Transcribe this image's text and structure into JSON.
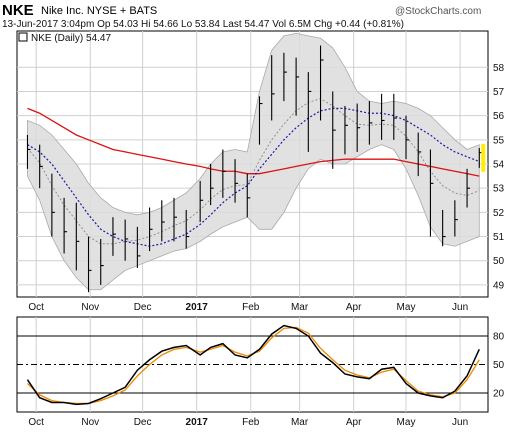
{
  "header": {
    "symbol": "NKE",
    "company": "Nike Inc.  NYSE + BATS",
    "watermark": "@StockCharts.com",
    "legend": "NKE (Daily) 54.47",
    "quote_line": "13-Jun-2017 3:04pm   Op 54.03   Hi 54.66   Lo 53.84   Last 54.47   Vol 6.5M   Chg +0.44 (+0.81%)"
  },
  "chart_data": [
    {
      "type": "ohlc",
      "title": "NKE (Daily) 54.47",
      "x": [
        "2016-09-26",
        "2016-10-03",
        "2016-10-10",
        "2016-10-17",
        "2016-10-24",
        "2016-10-31",
        "2016-11-07",
        "2016-11-14",
        "2016-11-21",
        "2016-11-28",
        "2016-12-05",
        "2016-12-12",
        "2016-12-19",
        "2016-12-26",
        "2017-01-03",
        "2017-01-09",
        "2017-01-16",
        "2017-01-23",
        "2017-01-30",
        "2017-02-06",
        "2017-02-13",
        "2017-02-20",
        "2017-02-27",
        "2017-03-06",
        "2017-03-13",
        "2017-03-20",
        "2017-03-27",
        "2017-04-03",
        "2017-04-10",
        "2017-04-17",
        "2017-04-24",
        "2017-05-01",
        "2017-05-08",
        "2017-05-15",
        "2017-05-22",
        "2017-05-29",
        "2017-06-05",
        "2017-06-12"
      ],
      "close": [
        54.6,
        53.9,
        52.0,
        51.2,
        50.8,
        49.6,
        49.8,
        51.1,
        50.9,
        50.2,
        51.3,
        51.6,
        51.8,
        51.0,
        52.5,
        53.0,
        53.7,
        53.2,
        52.6,
        56.5,
        56.9,
        57.8,
        57.6,
        57.0,
        58.3,
        55.4,
        55.6,
        55.5,
        55.7,
        55.8,
        55.9,
        55.0,
        54.5,
        53.2,
        51.0,
        51.7,
        53.0,
        54.47
      ],
      "high": [
        55.2,
        54.8,
        53.6,
        52.6,
        52.4,
        51.0,
        50.9,
        51.8,
        51.7,
        51.4,
        52.2,
        52.5,
        52.6,
        52.1,
        53.3,
        54.0,
        54.6,
        54.2,
        53.6,
        56.8,
        58.5,
        58.6,
        58.4,
        57.8,
        58.9,
        57.0,
        56.4,
        56.5,
        56.6,
        56.9,
        56.9,
        56.0,
        55.3,
        54.6,
        52.1,
        52.5,
        53.8,
        54.66
      ],
      "low": [
        53.8,
        53.0,
        51.0,
        50.3,
        49.6,
        48.7,
        49.0,
        50.2,
        50.0,
        49.7,
        50.4,
        50.8,
        50.8,
        50.5,
        51.6,
        52.3,
        52.6,
        52.4,
        51.8,
        54.8,
        55.8,
        56.6,
        56.0,
        54.5,
        55.8,
        53.8,
        54.4,
        54.5,
        54.8,
        55.0,
        55.0,
        54.2,
        53.5,
        51.0,
        50.6,
        51.0,
        52.2,
        53.84
      ],
      "ma50": [
        54.8,
        54.5,
        54.0,
        53.3,
        52.6,
        51.9,
        51.3,
        51.0,
        50.8,
        50.7,
        50.6,
        50.7,
        50.9,
        51.1,
        51.5,
        51.9,
        52.4,
        52.8,
        53.1,
        53.8,
        54.4,
        55.0,
        55.5,
        55.9,
        56.2,
        56.3,
        56.3,
        56.2,
        56.1,
        56.1,
        56.0,
        55.8,
        55.5,
        55.2,
        54.8,
        54.5,
        54.3,
        54.1
      ],
      "ma200": [
        56.3,
        56.1,
        55.8,
        55.5,
        55.2,
        55.0,
        54.8,
        54.6,
        54.5,
        54.4,
        54.3,
        54.2,
        54.1,
        54.0,
        53.9,
        53.8,
        53.7,
        53.7,
        53.6,
        53.6,
        53.7,
        53.8,
        53.9,
        54.0,
        54.1,
        54.15,
        54.2,
        54.2,
        54.2,
        54.2,
        54.2,
        54.1,
        54.0,
        53.9,
        53.8,
        53.7,
        53.6,
        53.5
      ],
      "bb_upper": [
        55.8,
        55.6,
        55.2,
        54.6,
        54.0,
        53.2,
        52.6,
        52.2,
        52.0,
        51.9,
        52.0,
        52.2,
        52.5,
        52.8,
        53.4,
        54.0,
        54.5,
        54.6,
        54.5,
        57.0,
        58.7,
        59.3,
        59.4,
        59.3,
        59.2,
        58.8,
        58.0,
        57.0,
        56.6,
        56.5,
        56.6,
        56.5,
        56.3,
        56.0,
        55.5,
        55.0,
        54.6,
        54.8
      ],
      "bb_lower": [
        53.5,
        52.5,
        51.0,
        50.0,
        49.3,
        48.8,
        48.8,
        49.2,
        49.6,
        49.8,
        50.0,
        50.2,
        50.4,
        50.5,
        50.8,
        51.1,
        51.4,
        51.6,
        51.8,
        51.3,
        51.3,
        52.0,
        53.0,
        53.8,
        54.2,
        54.0,
        54.0,
        54.3,
        54.6,
        54.8,
        54.6,
        53.8,
        52.7,
        51.4,
        50.7,
        50.6,
        50.8,
        51.0
      ],
      "ylim": [
        48.5,
        59.5
      ],
      "y_ticks": [
        49,
        50,
        51,
        52,
        53,
        54,
        55,
        56,
        57,
        58
      ],
      "price_label": "54.47",
      "grid": true
    },
    {
      "type": "line",
      "title": "",
      "x": [
        "2016-09-26",
        "2016-10-03",
        "2016-10-10",
        "2016-10-17",
        "2016-10-24",
        "2016-10-31",
        "2016-11-07",
        "2016-11-14",
        "2016-11-21",
        "2016-11-28",
        "2016-12-05",
        "2016-12-12",
        "2016-12-19",
        "2016-12-26",
        "2017-01-03",
        "2017-01-09",
        "2017-01-16",
        "2017-01-23",
        "2017-01-30",
        "2017-02-06",
        "2017-02-13",
        "2017-02-20",
        "2017-02-27",
        "2017-03-06",
        "2017-03-13",
        "2017-03-20",
        "2017-03-27",
        "2017-04-03",
        "2017-04-10",
        "2017-04-17",
        "2017-04-24",
        "2017-05-01",
        "2017-05-08",
        "2017-05-15",
        "2017-05-22",
        "2017-05-29",
        "2017-06-05",
        "2017-06-12"
      ],
      "series": [
        {
          "values": [
            34,
            15,
            10,
            10,
            8,
            9,
            14,
            20,
            26,
            44,
            55,
            64,
            68,
            70,
            60,
            68,
            72,
            60,
            57,
            66,
            82,
            91,
            88,
            80,
            62,
            52,
            40,
            37,
            35,
            45,
            47,
            30,
            20,
            17,
            15,
            22,
            38,
            66
          ]
        },
        {
          "values": [
            30,
            18,
            12,
            10,
            9,
            9,
            12,
            17,
            23,
            38,
            50,
            60,
            66,
            68,
            63,
            66,
            70,
            63,
            59,
            64,
            78,
            88,
            89,
            83,
            67,
            55,
            44,
            39,
            36,
            42,
            45,
            33,
            22,
            18,
            16,
            20,
            34,
            55
          ]
        }
      ],
      "ylim": [
        0,
        100
      ],
      "y_ticks": [
        20,
        50,
        80
      ],
      "reference_lines": [
        20,
        50,
        80
      ],
      "grid": true
    }
  ],
  "x_axis": {
    "months": [
      "Oct",
      "Nov",
      "Dec",
      "2017",
      "Feb",
      "Mar",
      "Apr",
      "May",
      "Jun"
    ],
    "month_dates": [
      "2016-10-01",
      "2016-11-01",
      "2016-12-01",
      "2017-01-01",
      "2017-02-01",
      "2017-03-01",
      "2017-04-01",
      "2017-05-01",
      "2017-06-01"
    ],
    "range": [
      "2016-09-20",
      "2017-06-17"
    ]
  },
  "colors": {
    "bars": "#000000",
    "ma50": "#1a1aa8",
    "ma200": "#dd1111",
    "bb_mid": "#888888",
    "bb_fill": "#dcdcdc",
    "osc_main": "#000000",
    "osc_signal": "#ee8800",
    "last_bar": "#ffee00"
  }
}
